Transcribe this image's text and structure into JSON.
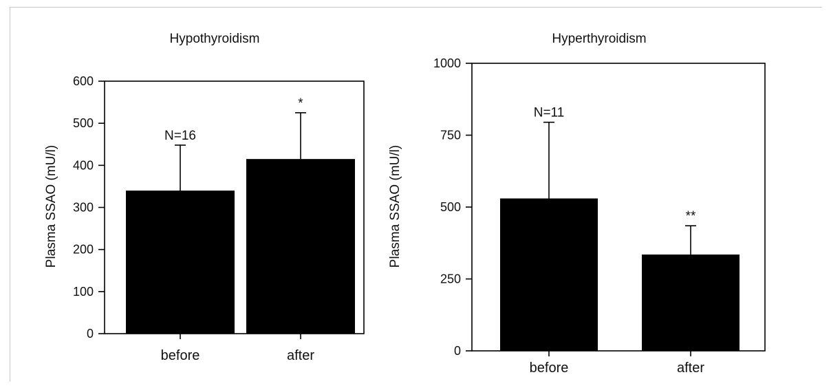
{
  "chart_data": [
    {
      "type": "bar",
      "title": "Hypothyroidism",
      "ylabel": "Plasma SSAO (mU/l)",
      "xlabel": "",
      "categories": [
        "before",
        "after"
      ],
      "values": [
        340,
        415
      ],
      "errors": [
        108,
        110
      ],
      "annotations": [
        "N=16",
        "*"
      ],
      "ylim": [
        0,
        600
      ],
      "yticks": [
        0,
        100,
        200,
        300,
        400,
        500,
        600
      ],
      "bar_color": "#000000",
      "grid": false
    },
    {
      "type": "bar",
      "title": "Hyperthyroidism",
      "ylabel": "Plasma SSAO (mU/l)",
      "xlabel": "",
      "categories": [
        "before",
        "after"
      ],
      "values": [
        530,
        335
      ],
      "errors": [
        265,
        100
      ],
      "annotations": [
        "N=11",
        "**"
      ],
      "ylim": [
        0,
        1000
      ],
      "yticks": [
        0,
        250,
        500,
        750,
        1000
      ],
      "bar_color": "#000000",
      "grid": false
    }
  ]
}
